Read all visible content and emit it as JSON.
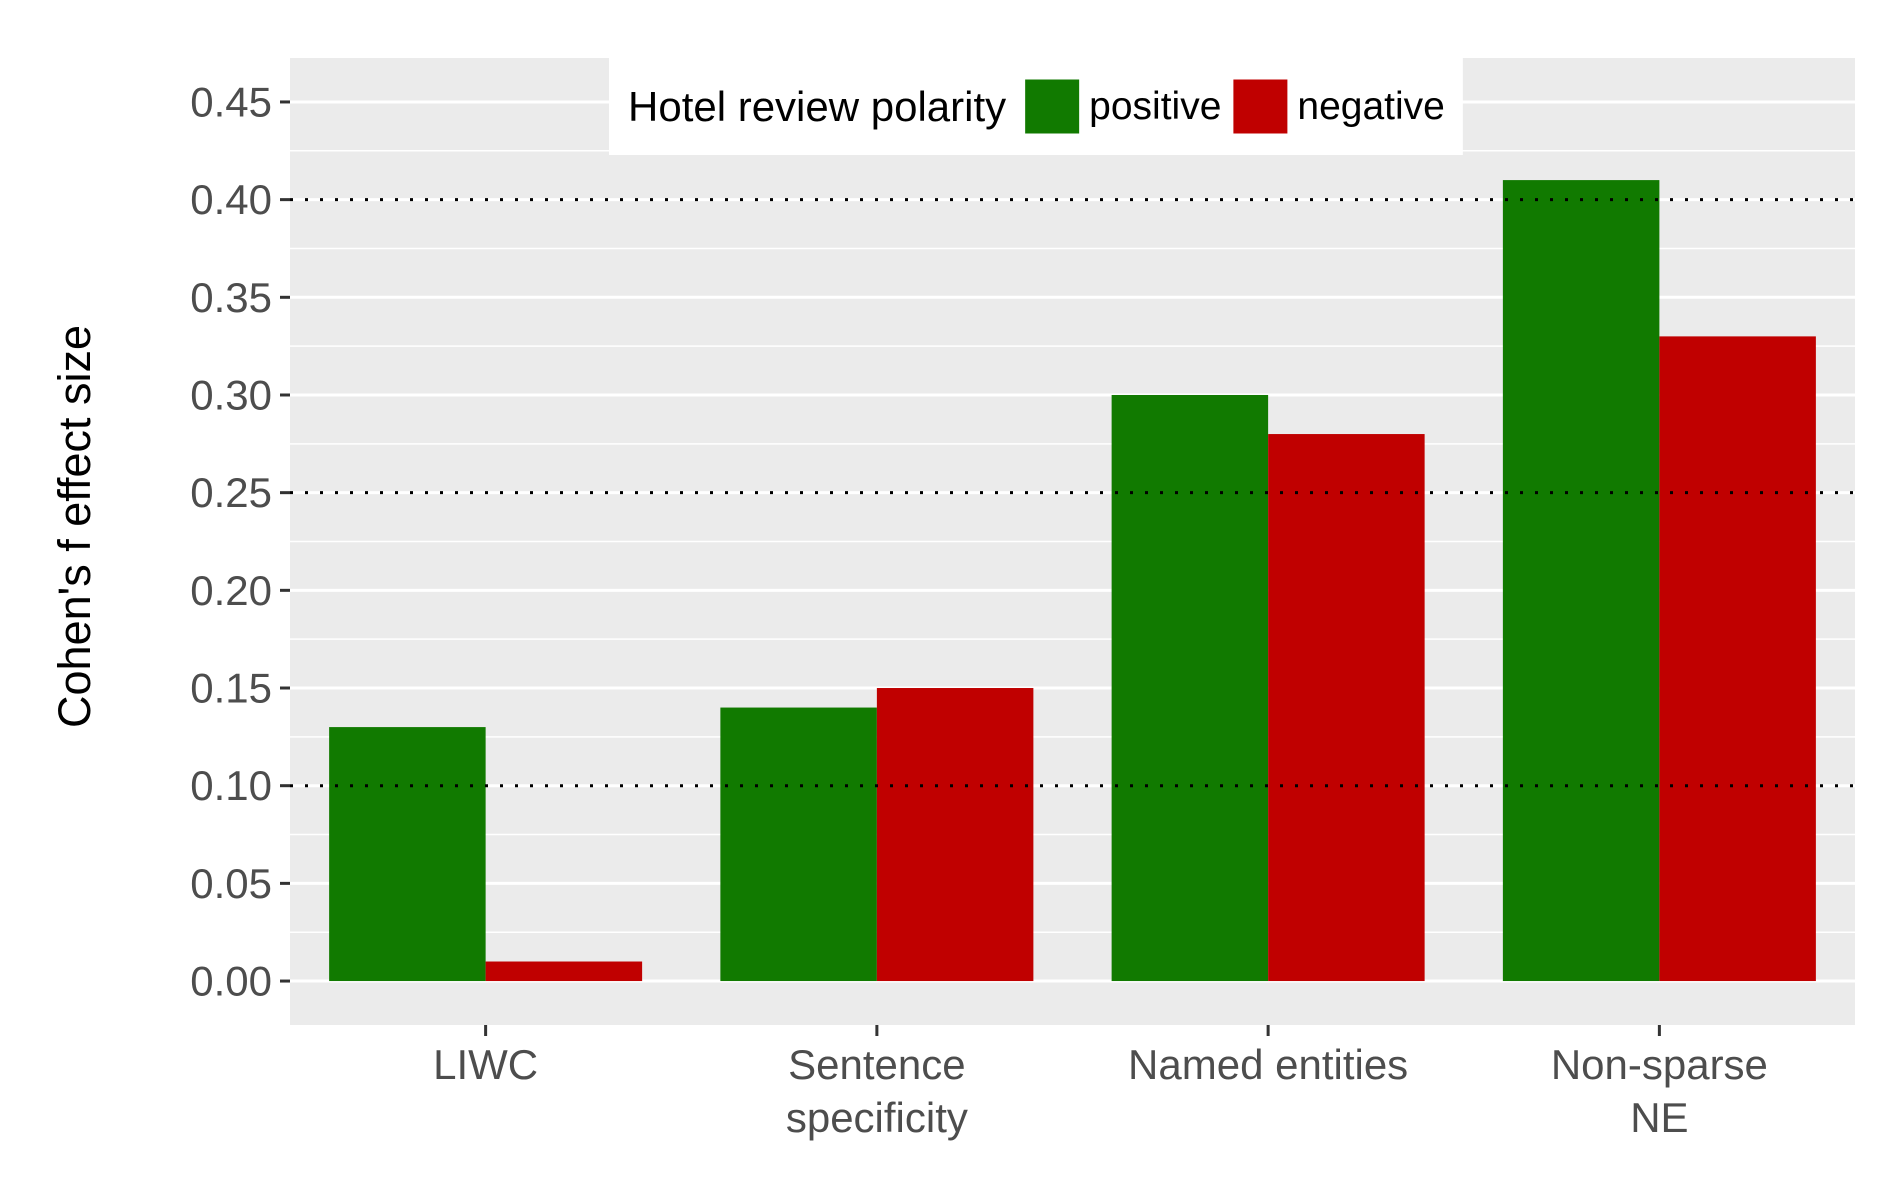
{
  "chart_data": {
    "type": "bar",
    "categories": [
      "LIWC",
      "Sentence\nspecificity",
      "Named entities",
      "Non-sparse\nNE"
    ],
    "series": [
      {
        "name": "positive",
        "color": "#117a00",
        "values": [
          0.13,
          0.14,
          0.3,
          0.41
        ]
      },
      {
        "name": "negative",
        "color": "#c00000",
        "values": [
          0.01,
          0.15,
          0.28,
          0.33
        ]
      }
    ],
    "xlabel": "",
    "ylabel": "Cohen's f effect size",
    "ylim": [
      -0.0225,
      0.4725
    ],
    "yticks": [
      0.0,
      0.05,
      0.1,
      0.15,
      0.2,
      0.25,
      0.3,
      0.35,
      0.4,
      0.45
    ],
    "ytick_labels": [
      "0.00",
      "0.05",
      "0.10",
      "0.15",
      "0.20",
      "0.25",
      "0.30",
      "0.35",
      "0.40",
      "0.45"
    ],
    "reference_lines": [
      0.1,
      0.25,
      0.4
    ],
    "legend": {
      "title": "Hotel review polarity",
      "position": "top-center"
    },
    "grid": true,
    "background": "#ebebeb"
  }
}
